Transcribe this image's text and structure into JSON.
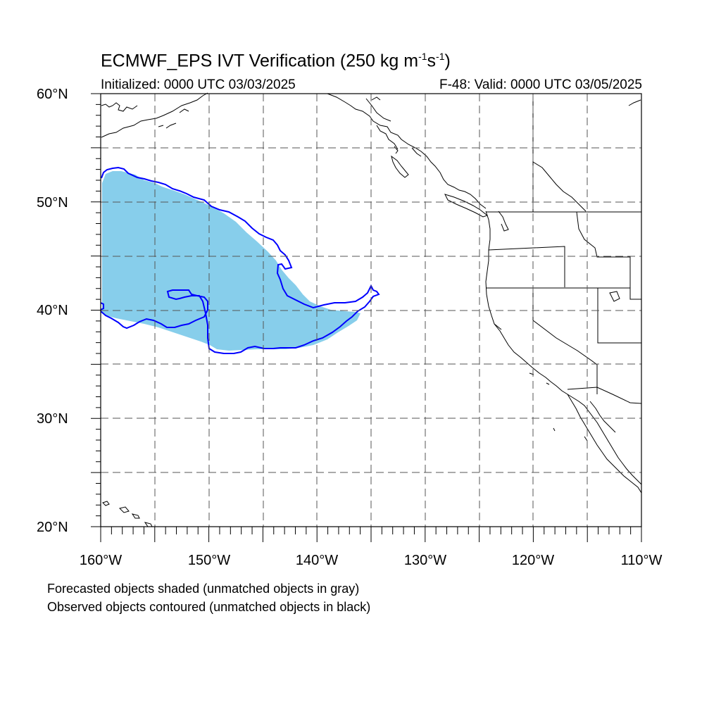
{
  "header": {
    "title_main": "ECMWF_EPS IVT Verification (250 kg m",
    "title_exp1": "-1",
    "title_mid": "s",
    "title_exp2": "-1",
    "title_end": ")",
    "initialized": "Initialized: 0000 UTC 03/03/2025",
    "valid": "F-48: Valid: 0000 UTC 03/05/2025"
  },
  "axes": {
    "y_labels": [
      "60°N",
      "50°N",
      "40°N",
      "30°N",
      "20°N"
    ],
    "x_labels": [
      "160°W",
      "150°W",
      "140°W",
      "130°W",
      "120°W",
      "110°W"
    ],
    "lat_range": [
      20,
      60
    ],
    "lon_range": [
      -160,
      -110
    ]
  },
  "footer": {
    "line1": "Forecasted objects shaded (unmatched objects in gray)",
    "line2": "Observed objects contoured (unmatched objects in black)"
  },
  "colors": {
    "forecast_fill": "#87ceeb",
    "observed_contour": "#0000ff",
    "coastline": "#000000",
    "grid": "#555555"
  }
}
